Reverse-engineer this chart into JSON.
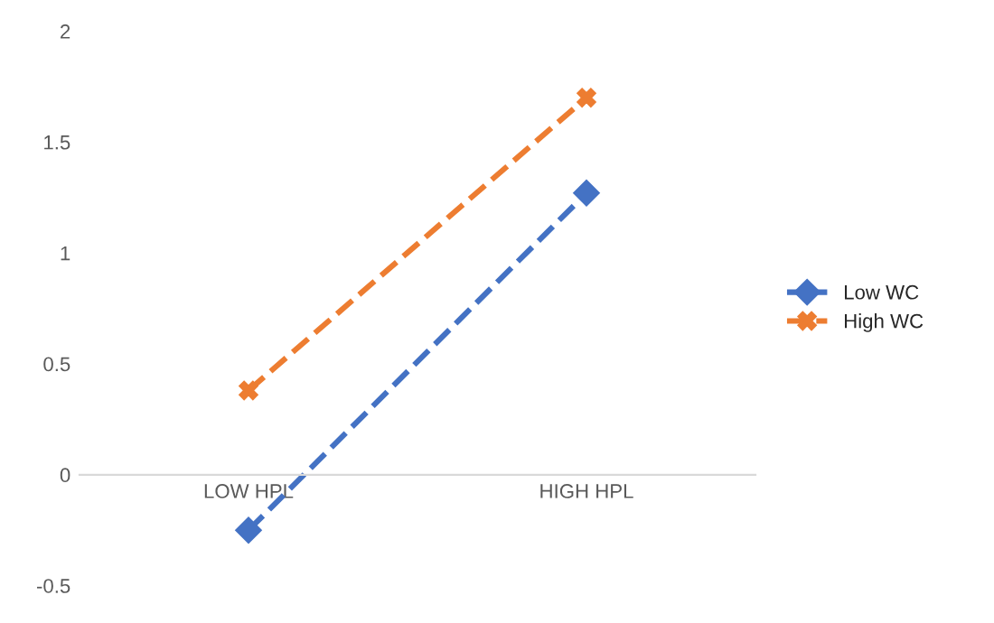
{
  "chart_data": {
    "type": "line",
    "categories": [
      "LOW HPL",
      "HIGH HPL"
    ],
    "series": [
      {
        "name": "Low WC",
        "color": "#4472c4",
        "values": [
          -0.25,
          1.27
        ],
        "marker": "diamond",
        "line_style": "dashed"
      },
      {
        "name": "High WC",
        "color": "#ed7d31",
        "values": [
          0.38,
          1.7
        ],
        "marker": "cross",
        "line_style": "dashed"
      }
    ],
    "ylim": [
      -0.5,
      2
    ],
    "yticks": [
      -0.5,
      0,
      0.5,
      1,
      1.5,
      2
    ],
    "grid": false,
    "legend": "right"
  }
}
